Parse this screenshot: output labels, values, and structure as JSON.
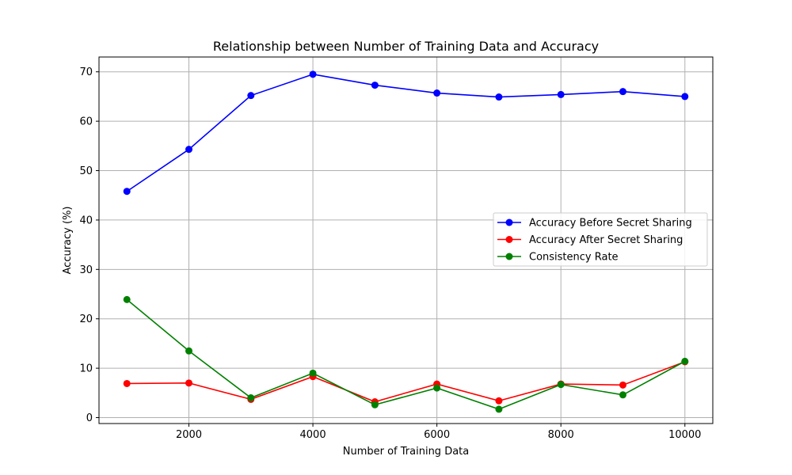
{
  "chart_data": {
    "type": "line",
    "title": "Relationship between Number of Training Data and Accuracy",
    "xlabel": "Number of Training Data",
    "ylabel": "Accuracy (%)",
    "x": [
      1000,
      2000,
      3000,
      4000,
      5000,
      6000,
      7000,
      8000,
      9000,
      10000
    ],
    "xlim": [
      550,
      10450
    ],
    "ylim": [
      -1.2,
      73
    ],
    "xticks": [
      2000,
      4000,
      6000,
      8000,
      10000
    ],
    "xtick_labels": [
      "2000",
      "4000",
      "6000",
      "8000",
      "10000"
    ],
    "yticks": [
      0,
      10,
      20,
      30,
      40,
      50,
      60,
      70
    ],
    "ytick_labels": [
      "0",
      "10",
      "20",
      "30",
      "40",
      "50",
      "60",
      "70"
    ],
    "grid": true,
    "legend_position": "center-right",
    "series": [
      {
        "name": "Accuracy Before Secret Sharing",
        "color": "#0000ff",
        "marker": "circle",
        "values": [
          45.8,
          54.3,
          65.2,
          69.5,
          67.3,
          65.7,
          64.9,
          65.4,
          66.0,
          65.0
        ]
      },
      {
        "name": "Accuracy After Secret Sharing",
        "color": "#ff0000",
        "marker": "circle",
        "values": [
          6.9,
          7.0,
          3.7,
          8.3,
          3.2,
          6.8,
          3.4,
          6.8,
          6.6,
          11.3
        ]
      },
      {
        "name": "Consistency Rate",
        "color": "#008000",
        "marker": "circle",
        "values": [
          23.9,
          13.5,
          4.0,
          9.0,
          2.6,
          6.0,
          1.7,
          6.7,
          4.6,
          11.4
        ]
      }
    ]
  }
}
